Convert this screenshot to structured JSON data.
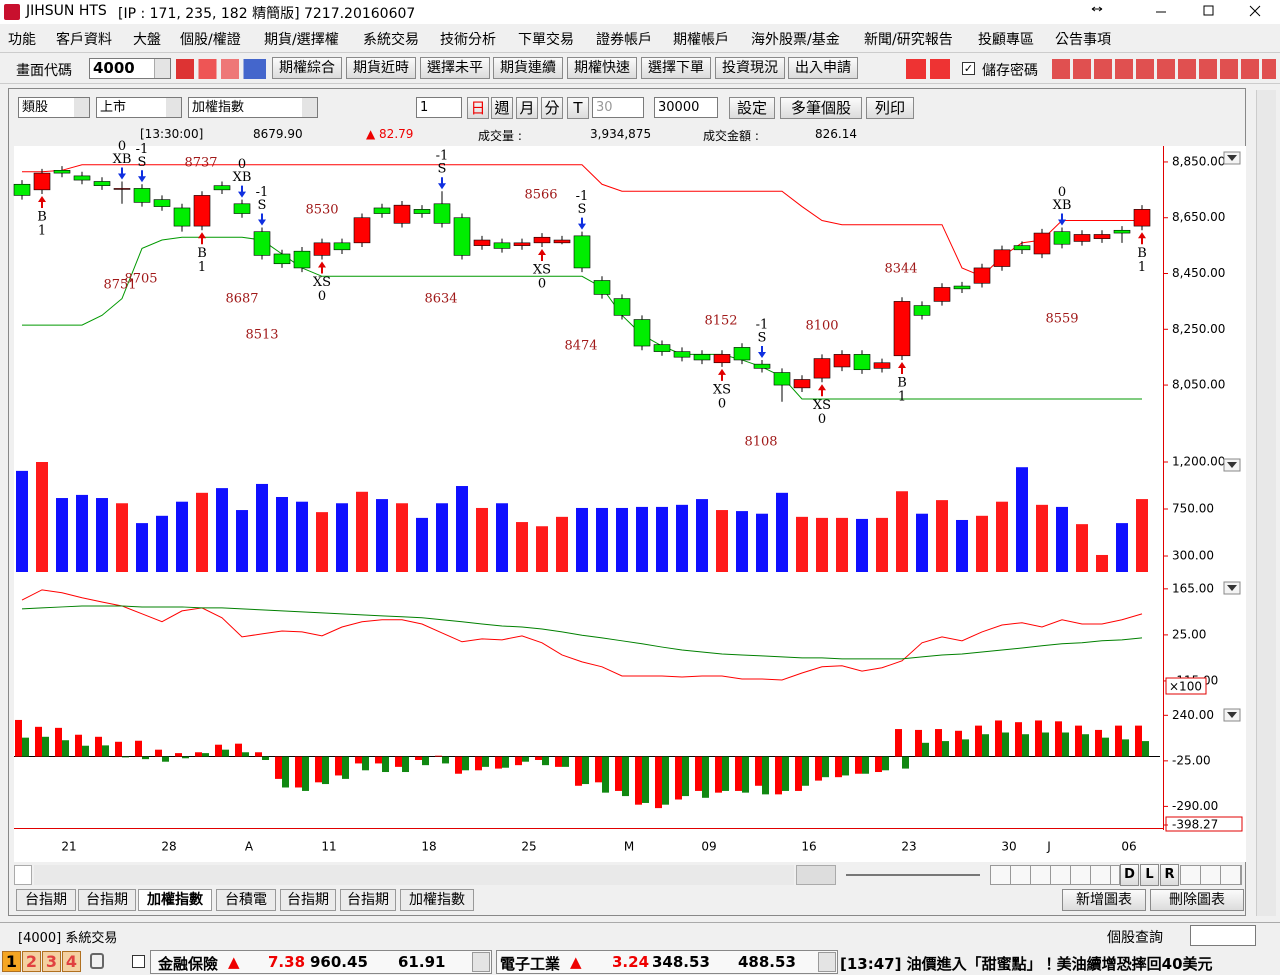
{
  "window": {
    "title": "JIHSUN HTS",
    "info": "[IP : 171, 235, 182 精簡版] 7217.20160607"
  },
  "menu": [
    "功能",
    "客戶資料",
    "大盤",
    "個股/權證",
    "期貨/選擇權",
    "系統交易",
    "技術分析",
    "下單交易",
    "證券帳戶",
    "期權帳戶",
    "海外股票/基金",
    "新聞/研究報告",
    "投顧專區",
    "公告事項"
  ],
  "toolbar": {
    "code_label": "畫面代碼",
    "code": "4000",
    "buttons": [
      "期權綜合",
      "期貨近時",
      "選擇未平",
      "期貨連續",
      "期權快速",
      "選擇下單",
      "投資現況",
      "出入申請"
    ],
    "save_password": "儲存密碼"
  },
  "chart_toolbar": {
    "selects": [
      "類股",
      "上市",
      "加權指數"
    ],
    "count": "1",
    "periods": [
      "日",
      "週",
      "月",
      "分",
      "T"
    ],
    "minutes": "30",
    "bars": "30000",
    "buttons": [
      "設定",
      "多筆個股",
      "列印"
    ]
  },
  "quote": {
    "time": "[13:30:00]",
    "price": "8679.90",
    "change": "▲ 82.79",
    "volume_label": "成交量 :",
    "volume": "3,934,875",
    "amount_label": "成交金額 :",
    "amount": "826.14"
  },
  "chart_data": [
    {
      "type": "candlestick",
      "categories": [
        null,
        null,
        "21",
        null,
        null,
        null,
        null,
        "28",
        null,
        null,
        null,
        "A",
        null,
        null,
        null,
        "11",
        null,
        null,
        null,
        null,
        "18",
        null,
        null,
        null,
        null,
        "25",
        null,
        null,
        null,
        null,
        "M",
        null,
        null,
        null,
        "09",
        null,
        null,
        null,
        null,
        "16",
        null,
        null,
        null,
        null,
        "23",
        null,
        null,
        null,
        null,
        "30",
        null,
        "J",
        null,
        null,
        null,
        "06",
        null
      ],
      "open": [
        8770,
        8750,
        8820,
        8800,
        8780,
        8755,
        8755,
        8715,
        8685,
        8620,
        8765,
        8700,
        8600,
        8520,
        8530,
        8515,
        8560,
        8560,
        8685,
        8630,
        8680,
        8700,
        8650,
        8550,
        8560,
        8550,
        8560,
        8560,
        8585,
        8425,
        8360,
        8285,
        8195,
        8170,
        8160,
        8130,
        8185,
        8125,
        8095,
        8040,
        8075,
        8115,
        8160,
        8110,
        8155,
        8335,
        8350,
        8405,
        8415,
        8475,
        8550,
        8520,
        8600,
        8565,
        8575,
        8605,
        8620
      ],
      "high": [
        8785,
        8825,
        8835,
        8815,
        8795,
        8780,
        8770,
        8730,
        8700,
        8745,
        8780,
        8715,
        8615,
        8535,
        8545,
        8575,
        8575,
        8665,
        8700,
        8710,
        8695,
        8745,
        8665,
        8585,
        8575,
        8575,
        8595,
        8585,
        8600,
        8440,
        8375,
        8300,
        8210,
        8185,
        8175,
        8175,
        8200,
        8140,
        8110,
        8085,
        8160,
        8175,
        8175,
        8145,
        8365,
        8350,
        8415,
        8420,
        8485,
        8550,
        8565,
        8610,
        8615,
        8605,
        8605,
        8620,
        8695
      ],
      "low": [
        8715,
        8735,
        8795,
        8770,
        8750,
        8700,
        8690,
        8675,
        8600,
        8605,
        8735,
        8650,
        8500,
        8470,
        8455,
        8500,
        8520,
        8545,
        8650,
        8615,
        8650,
        8615,
        8500,
        8535,
        8525,
        8535,
        8545,
        8555,
        8455,
        8360,
        8285,
        8175,
        8155,
        8135,
        8125,
        8115,
        8125,
        8095,
        7990,
        8025,
        8060,
        8100,
        8090,
        8095,
        8140,
        8285,
        8335,
        8380,
        8400,
        8460,
        8520,
        8505,
        8540,
        8550,
        8560,
        8560,
        8605
      ],
      "close": [
        8730,
        8810,
        8810,
        8785,
        8765,
        8755,
        8705,
        8690,
        8620,
        8730,
        8750,
        8665,
        8515,
        8485,
        8470,
        8560,
        8535,
        8650,
        8665,
        8695,
        8665,
        8630,
        8515,
        8570,
        8540,
        8560,
        8580,
        8570,
        8470,
        8375,
        8300,
        8190,
        8170,
        8150,
        8140,
        8160,
        8140,
        8110,
        8050,
        8070,
        8145,
        8160,
        8105,
        8130,
        8350,
        8300,
        8400,
        8395,
        8470,
        8535,
        8535,
        8595,
        8555,
        8590,
        8590,
        8595,
        8680
      ],
      "up_color": "#ff0000",
      "down_color": "#00ee00",
      "stop_high": {
        "color": "#ff0000",
        "values": [
          8815,
          8815,
          8820,
          8840,
          8840,
          8840,
          8840,
          8840,
          8840,
          8840,
          8840,
          8840,
          8840,
          8840,
          8840,
          8840,
          8840,
          8840,
          8840,
          8840,
          8840,
          8840,
          8840,
          8840,
          8840,
          8840,
          8840,
          8840,
          8840,
          8770,
          8745,
          8745,
          8745,
          8745,
          8745,
          8745,
          8745,
          8745,
          8745,
          8690,
          8640,
          8625,
          8625,
          8625,
          8625,
          8625,
          8625,
          8470,
          8440,
          8510,
          8560,
          8570,
          8640,
          8640,
          8640,
          8640,
          8640
        ]
      },
      "stop_low": {
        "color": "#009900",
        "values": [
          8265,
          8265,
          8265,
          8265,
          8300,
          8360,
          8540,
          8570,
          8580,
          8580,
          8580,
          8580,
          8570,
          8520,
          8470,
          8440,
          8440,
          8440,
          8440,
          8440,
          8440,
          8440,
          8440,
          8440,
          8440,
          8440,
          8440,
          8440,
          8440,
          8400,
          8300,
          8230,
          8190,
          8160,
          8160,
          8160,
          8140,
          8115,
          8080,
          8000,
          8000,
          8000,
          8000,
          8000,
          8000,
          8000,
          8000,
          8000,
          8000,
          8000,
          8000,
          8000,
          8000,
          8000,
          8000,
          8000,
          8000
        ]
      },
      "price_labels": [
        "8737",
        "8751",
        "8705",
        "8687",
        "8513",
        "8530",
        "8634",
        "8566",
        "8474",
        "8152",
        "8108",
        "8100",
        "8344",
        "8559"
      ],
      "signals": [
        {
          "code": "B",
          "n": "1"
        },
        {
          "code": "XB",
          "n": "0"
        },
        {
          "code": "S",
          "n": "-1"
        },
        {
          "code": "B",
          "n": "1"
        },
        {
          "code": "XB",
          "n": "0"
        },
        {
          "code": "S",
          "n": "-1"
        },
        {
          "code": "XS",
          "n": "0"
        },
        {
          "code": "S",
          "n": "-1"
        },
        {
          "code": "XS",
          "n": "0"
        },
        {
          "code": "S",
          "n": "-1"
        },
        {
          "code": "XS",
          "n": "0"
        },
        {
          "code": "S",
          "n": "-1"
        },
        {
          "code": "XS",
          "n": "0"
        },
        {
          "code": "B",
          "n": "1"
        },
        {
          "code": "XB",
          "n": "0"
        },
        {
          "code": "B",
          "n": "1"
        }
      ],
      "ylim": [
        7810,
        8900
      ],
      "yticks": [
        {
          "value": 8850,
          "label": "8,850.00"
        },
        {
          "value": 8650,
          "label": "8,650.00"
        },
        {
          "value": 8450,
          "label": "8,450.00"
        },
        {
          "value": 8250,
          "label": "8,250.00"
        },
        {
          "value": 8050,
          "label": "8,050.00"
        }
      ]
    },
    {
      "type": "bar",
      "values": [
        1115,
        1200,
        855,
        885,
        855,
        805,
        615,
        685,
        820,
        905,
        950,
        740,
        990,
        865,
        820,
        720,
        805,
        915,
        845,
        805,
        665,
        805,
        970,
        760,
        805,
        625,
        585,
        675,
        760,
        760,
        760,
        770,
        770,
        790,
        845,
        740,
        730,
        705,
        905,
        675,
        665,
        665,
        655,
        665,
        920,
        705,
        835,
        645,
        685,
        820,
        1150,
        790,
        770,
        605,
        310,
        615,
        845
      ],
      "up_color": "#ff1a1a",
      "down_color": "#1010ff",
      "ylim": [
        147,
        1267
      ],
      "yticks": [
        {
          "value": 1200,
          "label": "1,200.00"
        },
        {
          "value": 750,
          "label": "750.00"
        },
        {
          "value": 300,
          "label": "300.00"
        }
      ]
    },
    {
      "type": "line",
      "series": [
        {
          "color": "#ff0000",
          "values": [
            131,
            162,
            153,
            138,
            125,
            113,
            89,
            65,
            98,
            107,
            77,
            19,
            28,
            37,
            34,
            22,
            49,
            65,
            71,
            71,
            58,
            31,
            4,
            13,
            10,
            22,
            1,
            -36,
            -57,
            -72,
            -100,
            -100,
            -100,
            -103,
            -100,
            -100,
            -109,
            -109,
            -112,
            -91,
            -72,
            -69,
            -85,
            -75,
            -54,
            1,
            19,
            7,
            34,
            55,
            62,
            49,
            71,
            58,
            58,
            71,
            89
          ]
        },
        {
          "color": "#008000",
          "values": [
            104,
            107,
            110,
            113,
            113,
            113,
            110,
            110,
            110,
            107,
            107,
            104,
            101,
            98,
            95,
            92,
            89,
            86,
            83,
            80,
            77,
            71,
            65,
            58,
            52,
            49,
            43,
            34,
            24,
            16,
            7,
            -2,
            -12,
            -21,
            -27,
            -33,
            -36,
            -39,
            -42,
            -45,
            -45,
            -48,
            -48,
            -48,
            -48,
            -42,
            -36,
            -33,
            -27,
            -21,
            -15,
            -8,
            -2,
            1,
            7,
            10,
            16
          ]
        }
      ],
      "scale_label": "×100",
      "ylim": [
        -173,
        198
      ],
      "yticks": [
        {
          "value": 165,
          "label": "165.00"
        },
        {
          "value": 25,
          "label": "25.00"
        },
        {
          "value": -115,
          "label": "-115.00"
        }
      ]
    },
    {
      "type": "bar",
      "series": [
        {
          "color": "#ff0000",
          "values": [
            213,
            173,
            167,
            127,
            115,
            86,
            92,
            40,
            20,
            25,
            69,
            75,
            25,
            -130,
            -180,
            -150,
            -110,
            -40,
            -40,
            -60,
            -20,
            5,
            -100,
            -80,
            -70,
            -50,
            -20,
            -60,
            -170,
            -150,
            -200,
            -280,
            -300,
            -250,
            -200,
            -210,
            -200,
            -170,
            -220,
            -200,
            -140,
            -120,
            -100,
            -90,
            160,
            155,
            160,
            150,
            180,
            210,
            200,
            210,
            205,
            180,
            155,
            180,
            180
          ]
        },
        {
          "color": "#118811",
          "values": [
            110,
            115,
            95,
            63,
            65,
            -5,
            -15,
            -30,
            -10,
            20,
            40,
            25,
            -20,
            -180,
            -200,
            -160,
            -130,
            -80,
            -90,
            -90,
            -50,
            -40,
            -80,
            -60,
            -65,
            -30,
            -50,
            -60,
            -160,
            -210,
            -230,
            -270,
            -280,
            -230,
            -240,
            -200,
            -210,
            -220,
            -200,
            -170,
            -120,
            -110,
            -100,
            -80,
            -70,
            80,
            90,
            100,
            130,
            140,
            130,
            140,
            140,
            130,
            110,
            100,
            90
          ]
        }
      ],
      "ylim": [
        -398.27,
        300
      ],
      "yticks": [
        {
          "value": 240,
          "label": "240.00"
        },
        {
          "value": -25,
          "label": "-25.00"
        },
        {
          "value": -290,
          "label": "-290.00"
        },
        {
          "value": -398.27,
          "label": "-398.27"
        }
      ]
    }
  ],
  "tabs": [
    "台指期",
    "台指期",
    "加權指數",
    "台積電",
    "台指期",
    "台指期",
    "加權指數"
  ],
  "active_tab": 2,
  "zoom_letters": [
    "D",
    "L",
    "R"
  ],
  "chart_buttons": [
    "新增圖表",
    "刪除圖表"
  ],
  "status": {
    "screen": "[4000] 系統交易",
    "search": "個股查詢"
  },
  "ticker": {
    "tabs": [
      "1",
      "2",
      "3",
      "4"
    ],
    "sectors": [
      {
        "name": "金融保險",
        "arrow": "▲",
        "change": "7.38",
        "index": "960.45",
        "volume": "61.91"
      },
      {
        "name": "電子工業",
        "arrow": "▲",
        "change": "3.24",
        "index": "348.53",
        "volume": "488.53"
      }
    ],
    "news": "[13:47] 油價進入「甜蜜點」！美油續增恐摔回40美元"
  }
}
